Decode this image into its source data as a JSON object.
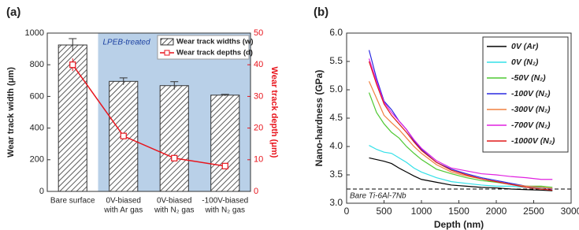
{
  "chart_data": [
    {
      "type": "bar",
      "label": "(a)",
      "categories": [
        [
          "Bare surface"
        ],
        [
          "0V-biased",
          "with Ar gas"
        ],
        [
          "0V-biased",
          "with N₂ gas"
        ],
        [
          "-100V-biased",
          "with N₂ gas"
        ]
      ],
      "series": [
        {
          "name": "Wear track widths (w)",
          "color": "#333333",
          "values": [
            925,
            695,
            668,
            608
          ],
          "errors": [
            40,
            22,
            25,
            5
          ]
        },
        {
          "name": "Wear track depths (d)",
          "color": "#e8141c",
          "axis": "y2",
          "values": [
            40,
            17.5,
            10.5,
            8
          ],
          "errors": [
            2,
            1,
            0.8,
            0.4
          ]
        }
      ],
      "ylabel": "Wear track width (μm)",
      "y2label": "Wear track depth (μm)",
      "ylim": [
        0,
        1000
      ],
      "yticks": [
        0,
        200,
        400,
        600,
        800,
        1000
      ],
      "y2lim": [
        0,
        50
      ],
      "y2ticks": [
        0,
        10,
        20,
        30,
        40,
        50
      ],
      "highlight": {
        "label": "LPEB-treated",
        "from_category": 1,
        "color": "#b9d0e8"
      },
      "legend": "upper right"
    },
    {
      "type": "line",
      "label": "(b)",
      "xlabel": "Depth (nm)",
      "ylabel": "Nano-hardness (GPa)",
      "x": [
        300,
        400,
        500,
        600,
        700,
        800,
        900,
        1000,
        1200,
        1400,
        1600,
        1800,
        2000,
        2200,
        2400,
        2600,
        2750
      ],
      "series": [
        {
          "name": "0V (Ar)",
          "color": "#000000",
          "values": [
            3.8,
            3.77,
            3.74,
            3.7,
            3.62,
            3.55,
            3.48,
            3.42,
            3.37,
            3.32,
            3.3,
            3.28,
            3.27,
            3.25,
            3.24,
            3.23,
            3.22
          ]
        },
        {
          "name": "0V (N₂)",
          "color": "#33e0e8",
          "values": [
            4.02,
            3.95,
            3.9,
            3.88,
            3.8,
            3.72,
            3.62,
            3.55,
            3.45,
            3.38,
            3.35,
            3.32,
            3.3,
            3.3,
            3.28,
            3.27,
            3.26
          ]
        },
        {
          "name": "-50V (N₂)",
          "color": "#4fc832",
          "values": [
            4.95,
            4.6,
            4.4,
            4.25,
            4.15,
            4.0,
            3.88,
            3.77,
            3.6,
            3.52,
            3.45,
            3.4,
            3.37,
            3.33,
            3.3,
            3.3,
            3.28
          ]
        },
        {
          "name": "-100V (N₂)",
          "color": "#2828e0",
          "values": [
            5.7,
            5.2,
            4.8,
            4.65,
            4.45,
            4.3,
            4.1,
            3.95,
            3.72,
            3.6,
            3.52,
            3.45,
            3.4,
            3.35,
            3.3,
            3.28,
            3.25
          ]
        },
        {
          "name": "-300V (N₂)",
          "color": "#f08040",
          "values": [
            5.15,
            4.85,
            4.55,
            4.42,
            4.3,
            4.15,
            4.0,
            3.88,
            3.68,
            3.55,
            3.48,
            3.43,
            3.38,
            3.33,
            3.3,
            3.28,
            3.26
          ]
        },
        {
          "name": "-700V (N₂)",
          "color": "#e020e0",
          "values": [
            5.55,
            5.15,
            4.78,
            4.6,
            4.45,
            4.3,
            4.12,
            3.97,
            3.75,
            3.62,
            3.57,
            3.52,
            3.5,
            3.47,
            3.45,
            3.42,
            3.42
          ]
        },
        {
          "name": "-1000V (N₂)",
          "color": "#e01818",
          "values": [
            5.5,
            5.1,
            4.75,
            4.55,
            4.4,
            4.25,
            4.08,
            3.93,
            3.72,
            3.58,
            3.5,
            3.43,
            3.38,
            3.33,
            3.28,
            3.25,
            3.23
          ]
        }
      ],
      "xlim": [
        0,
        3000
      ],
      "xticks": [
        0,
        500,
        1000,
        1500,
        2000,
        2500,
        3000
      ],
      "ylim": [
        3,
        6
      ],
      "yticks": [
        {
          "value": 3,
          "label": "3.0"
        },
        3.5,
        {
          "value": 4,
          "label": "4.0"
        },
        4.5,
        {
          "value": 5,
          "label": "5.0"
        },
        5.5,
        {
          "value": 6,
          "label": "6.0"
        }
      ],
      "reference": {
        "value": 3.25,
        "label": "Bare Ti-6Al-7Nb"
      },
      "legend": "upper right"
    }
  ]
}
